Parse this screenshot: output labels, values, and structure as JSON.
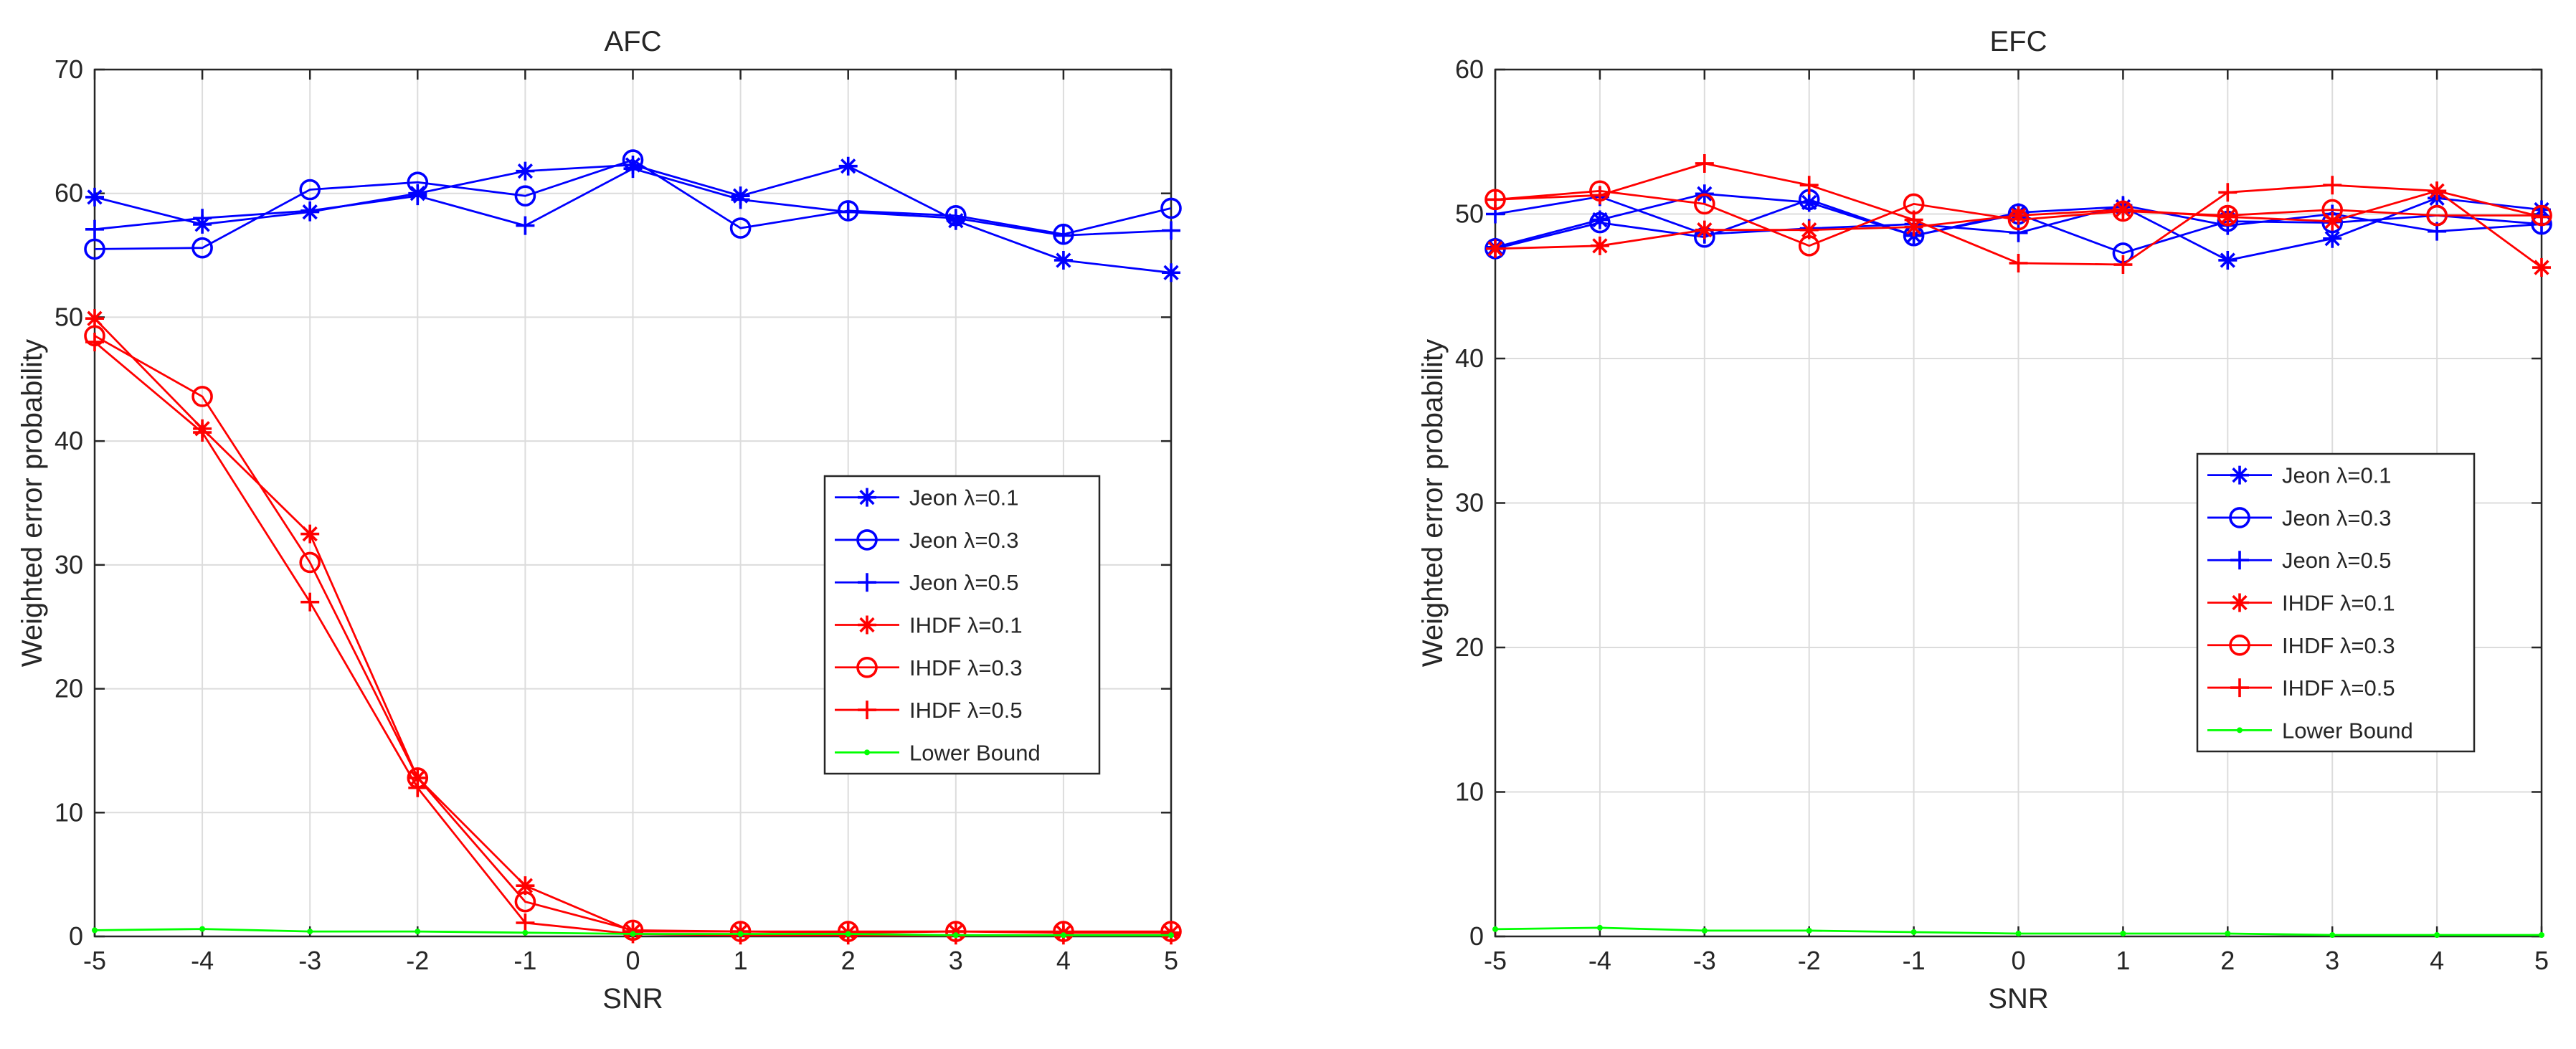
{
  "chart_data": [
    {
      "type": "line",
      "title": "AFC",
      "xlabel": "SNR",
      "ylabel": "Weighted error probability",
      "xlim": [
        -5,
        5
      ],
      "ylim": [
        0,
        70
      ],
      "xticks": [
        -5,
        -4,
        -3,
        -2,
        -1,
        0,
        1,
        2,
        3,
        4,
        5
      ],
      "yticks": [
        0,
        10,
        20,
        30,
        40,
        50,
        60,
        70
      ],
      "grid": true,
      "legend_position": "center-right",
      "x": [
        -5,
        -4,
        -3,
        -2,
        -1,
        0,
        1,
        2,
        3,
        4,
        5
      ],
      "series": [
        {
          "name": "Jeon λ=0.1",
          "color": "#0000ff",
          "marker": "star",
          "values": [
            59.7,
            57.5,
            58.5,
            60.0,
            61.8,
            62.3,
            59.8,
            62.2,
            57.8,
            54.6,
            53.6
          ]
        },
        {
          "name": "Jeon λ=0.3",
          "color": "#0000ff",
          "marker": "circle",
          "values": [
            55.5,
            55.6,
            60.3,
            60.9,
            59.8,
            62.7,
            57.2,
            58.6,
            58.2,
            56.7,
            58.8
          ]
        },
        {
          "name": "Jeon λ=0.5",
          "color": "#0000ff",
          "marker": "plus",
          "values": [
            57.1,
            58.0,
            58.6,
            59.8,
            57.4,
            62.0,
            59.5,
            58.5,
            58.0,
            56.6,
            57.0
          ]
        },
        {
          "name": "IHDF λ=0.1",
          "color": "#ff0000",
          "marker": "star",
          "values": [
            49.9,
            41.0,
            32.5,
            12.8,
            4.1,
            0.4,
            0.4,
            0.3,
            0.4,
            0.3,
            0.3
          ]
        },
        {
          "name": "IHDF λ=0.3",
          "color": "#ff0000",
          "marker": "circle",
          "values": [
            48.5,
            43.6,
            30.2,
            12.8,
            2.8,
            0.5,
            0.4,
            0.4,
            0.4,
            0.4,
            0.4
          ]
        },
        {
          "name": "IHDF λ=0.5",
          "color": "#ff0000",
          "marker": "plus",
          "values": [
            48.0,
            40.7,
            27.0,
            12.0,
            1.1,
            0.2,
            0.1,
            0.1,
            0.1,
            0.1,
            0.1
          ]
        },
        {
          "name": "Lower Bound",
          "color": "#00ff00",
          "marker": "dot",
          "values": [
            0.5,
            0.6,
            0.4,
            0.4,
            0.3,
            0.2,
            0.2,
            0.2,
            0.1,
            0.1,
            0.1
          ]
        }
      ]
    },
    {
      "type": "line",
      "title": "EFC",
      "xlabel": "SNR",
      "ylabel": "Weighted error probability",
      "xlim": [
        -5,
        5
      ],
      "ylim": [
        0,
        60
      ],
      "xticks": [
        -5,
        -4,
        -3,
        -2,
        -1,
        0,
        1,
        2,
        3,
        4,
        5
      ],
      "yticks": [
        0,
        10,
        20,
        30,
        40,
        50,
        60
      ],
      "grid": true,
      "legend_position": "center-right",
      "x": [
        -5,
        -4,
        -3,
        -2,
        -1,
        0,
        1,
        2,
        3,
        4,
        5
      ],
      "series": [
        {
          "name": "Jeon λ=0.1",
          "color": "#0000ff",
          "marker": "star",
          "values": [
            47.7,
            49.6,
            51.4,
            50.8,
            48.5,
            50.1,
            50.5,
            46.8,
            48.3,
            51.1,
            50.3
          ]
        },
        {
          "name": "Jeon λ=0.3",
          "color": "#0000ff",
          "marker": "circle",
          "values": [
            47.6,
            49.4,
            48.4,
            51.0,
            48.5,
            50.0,
            47.3,
            49.5,
            49.4,
            49.9,
            49.3
          ]
        },
        {
          "name": "Jeon λ=0.5",
          "color": "#0000ff",
          "marker": "plus",
          "values": [
            50.0,
            51.2,
            48.6,
            49.0,
            49.3,
            48.7,
            50.6,
            49.2,
            50.0,
            48.8,
            49.3
          ]
        },
        {
          "name": "IHDF λ=0.1",
          "color": "#ff0000",
          "marker": "star",
          "values": [
            47.6,
            47.8,
            48.9,
            48.9,
            49.1,
            49.9,
            50.3,
            49.8,
            49.5,
            51.6,
            46.3
          ]
        },
        {
          "name": "IHDF λ=0.3",
          "color": "#ff0000",
          "marker": "circle",
          "values": [
            51.0,
            51.6,
            50.7,
            47.8,
            50.7,
            49.6,
            50.2,
            49.9,
            50.3,
            49.9,
            49.9
          ]
        },
        {
          "name": "IHDF λ=0.5",
          "color": "#ff0000",
          "marker": "plus",
          "values": [
            51.0,
            51.3,
            53.5,
            52.0,
            49.6,
            46.6,
            46.5,
            51.5,
            52.0,
            51.6,
            49.8
          ]
        },
        {
          "name": "Lower Bound",
          "color": "#00ff00",
          "marker": "dot",
          "values": [
            0.5,
            0.6,
            0.4,
            0.4,
            0.3,
            0.2,
            0.2,
            0.2,
            0.1,
            0.1,
            0.1
          ]
        }
      ]
    }
  ]
}
